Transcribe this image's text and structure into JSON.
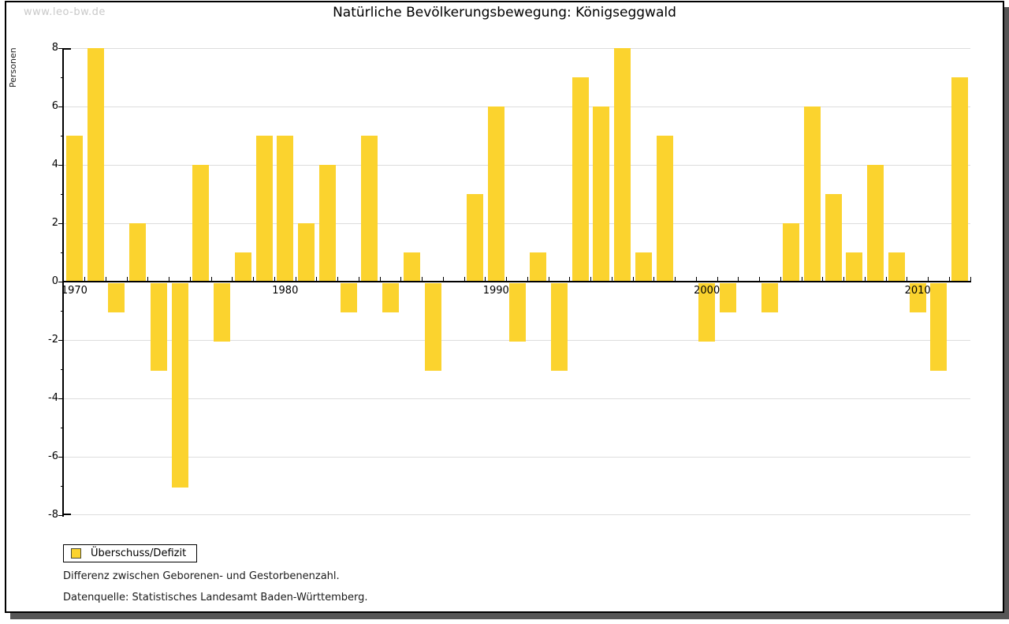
{
  "watermark": "www.leo-bw.de",
  "header": {
    "title": "Natürliche Bevölkerungsbewegung: Königseggwald"
  },
  "chart_data": {
    "type": "bar",
    "title": "Natürliche Bevölkerungsbewegung: Königseggwald",
    "xlabel": "",
    "ylabel": "Personen",
    "ylim": [
      -8,
      8
    ],
    "ytick_step": 2,
    "grid": true,
    "legend_position": "bottom-left",
    "series_name": "Überschuss/Defizit",
    "x": [
      1970,
      1971,
      1972,
      1973,
      1974,
      1975,
      1976,
      1977,
      1978,
      1979,
      1980,
      1981,
      1982,
      1983,
      1984,
      1985,
      1986,
      1987,
      1988,
      1989,
      1990,
      1991,
      1992,
      1993,
      1994,
      1995,
      1996,
      1997,
      1998,
      1999,
      2000,
      2001,
      2002,
      2003,
      2004,
      2005,
      2006,
      2007,
      2008,
      2009,
      2010,
      2011,
      2012
    ],
    "values": [
      5,
      8,
      -1,
      2,
      -3,
      -7,
      4,
      -2,
      1,
      5,
      5,
      2,
      4,
      -1,
      5,
      -1,
      1,
      -3,
      0,
      3,
      6,
      -2,
      1,
      -3,
      7,
      6,
      8,
      1,
      5,
      0,
      -2,
      -1,
      0,
      -1,
      2,
      6,
      3,
      1,
      4,
      1,
      -1,
      -3,
      7
    ],
    "xticks_labeled": [
      1970,
      1980,
      1990,
      2000,
      2010
    ]
  },
  "legend": {
    "label": "Überschuss/Defizit"
  },
  "footnotes": {
    "line1": "Differenz zwischen Geborenen- und Gestorbenenzahl.",
    "line2": "Datenquelle: Statistisches Landesamt Baden-Württemberg."
  },
  "colors": {
    "bar": "#FBD32E",
    "grid": "#DDDDDD",
    "axis": "#000000",
    "watermark": "#C9C9C9",
    "swatch_border": "#4A4A33",
    "shadow": "#565656"
  }
}
